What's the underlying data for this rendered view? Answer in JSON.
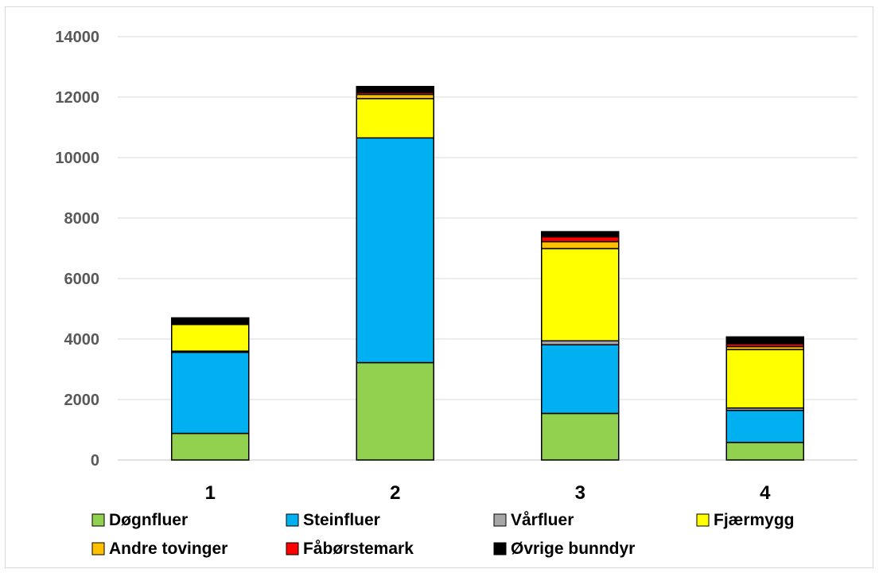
{
  "chart_data": {
    "type": "bar",
    "stacked": true,
    "categories": [
      "1",
      "2",
      "3",
      "4"
    ],
    "ylim": [
      0,
      14000
    ],
    "yticks": [
      0,
      2000,
      4000,
      6000,
      8000,
      10000,
      12000,
      14000
    ],
    "grid": true,
    "legend_position": "bottom",
    "series": [
      {
        "name": "Døgnfluer",
        "color": "#92d050",
        "values": [
          880,
          3220,
          1540,
          580
        ]
      },
      {
        "name": "Steinfluer",
        "color": "#00b0f0",
        "values": [
          2680,
          7430,
          2270,
          1060
        ]
      },
      {
        "name": "Vårfluer",
        "color": "#a6a6a6",
        "values": [
          40,
          0,
          130,
          80
        ]
      },
      {
        "name": "Fjærmygg",
        "color": "#ffff00",
        "values": [
          880,
          1300,
          3050,
          1930
        ]
      },
      {
        "name": "Andre tovinger",
        "color": "#ffc000",
        "values": [
          30,
          140,
          230,
          100
        ]
      },
      {
        "name": "Fåbørstemark",
        "color": "#ff0000",
        "values": [
          20,
          60,
          160,
          90
        ]
      },
      {
        "name": "Øvrige bunndyr",
        "color": "#000000",
        "values": [
          170,
          200,
          170,
          230
        ]
      }
    ]
  }
}
